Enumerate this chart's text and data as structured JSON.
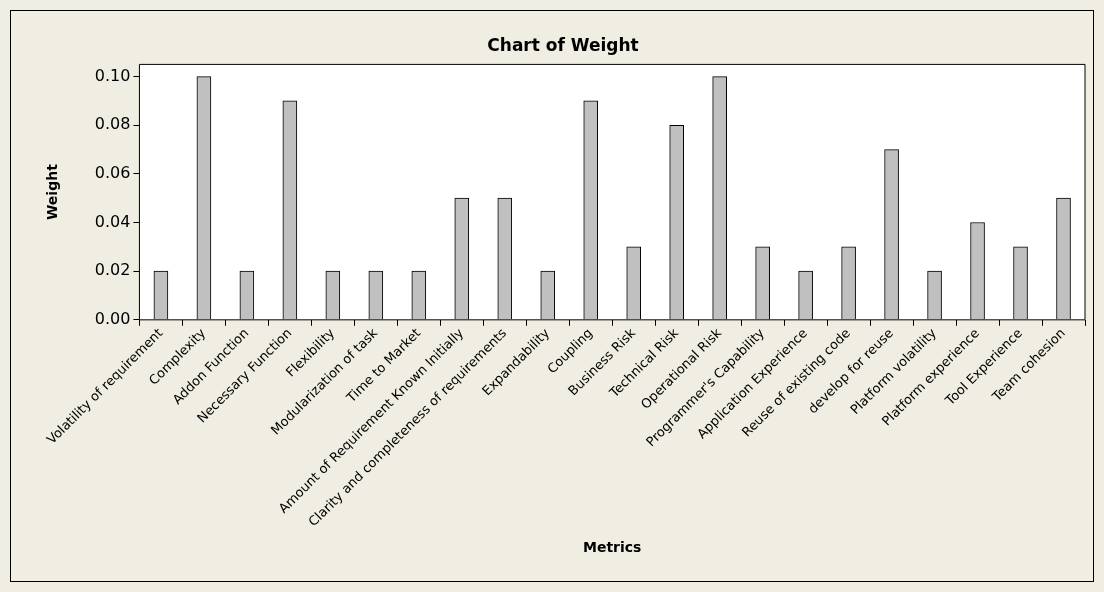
{
  "chart_data": {
    "type": "bar",
    "title": "Chart of Weight",
    "xlabel": "Metrics",
    "ylabel": "Weight",
    "categories": [
      "Volatility of requirement",
      "Complexity",
      "Addon Function",
      "Necessary Function",
      "Flexibility",
      "Modularization of task",
      "Time to Market",
      "Amount of Requirement Known Initially",
      "Clarity and completeness of requirements",
      "Expandability",
      "Coupling",
      "Business Risk",
      "Technical Risk",
      "Operational Risk",
      "Programmer's Capability",
      "Application Experience",
      "Reuse of existing code",
      "develop for reuse",
      "Platform volatility",
      "Platform experience",
      "Tool Experience",
      "Team cohesion"
    ],
    "values": [
      0.02,
      0.1,
      0.02,
      0.09,
      0.02,
      0.02,
      0.02,
      0.05,
      0.05,
      0.02,
      0.09,
      0.03,
      0.08,
      0.1,
      0.03,
      0.02,
      0.03,
      0.07,
      0.02,
      0.04,
      0.03,
      0.05
    ],
    "color": "#c0c0c0",
    "ylim": [
      0,
      0.105
    ],
    "yticks": [
      {
        "value": 0,
        "label": "0.00"
      },
      {
        "value": 0.02,
        "label": "0.02"
      },
      {
        "value": 0.04,
        "label": "0.04"
      },
      {
        "value": 0.06,
        "label": "0.06"
      },
      {
        "value": 0.08,
        "label": "0.08"
      },
      {
        "value": 0.1,
        "label": "0.10"
      }
    ]
  }
}
